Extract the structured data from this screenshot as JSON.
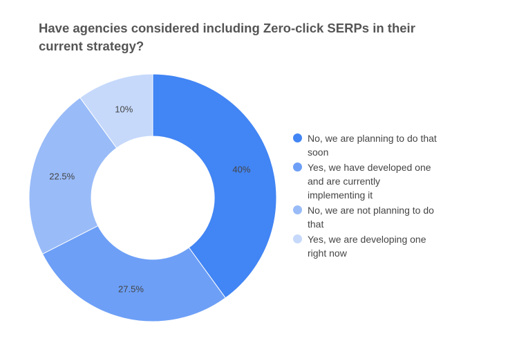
{
  "chart_data": {
    "type": "pie",
    "title": "Have agencies considered including Zero-click SERPs in their current strategy?",
    "categories": [
      "No, we are planning to do that soon",
      "Yes, we have developed one and are currently implementing it",
      "No, we are not planning to do that",
      "Yes, we are developing one right now"
    ],
    "values": [
      40,
      27.5,
      22.5,
      10
    ],
    "data_labels": [
      "40%",
      "27.5%",
      "22.5%",
      "10%"
    ],
    "colors": [
      "#4285f4",
      "#6d9ff6",
      "#99bbf8",
      "#c6d9fb"
    ],
    "donut": true,
    "legend_position": "right"
  }
}
